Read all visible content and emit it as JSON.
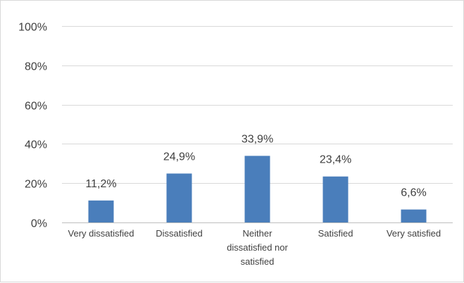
{
  "chart_data": {
    "type": "bar",
    "title": "",
    "xlabel": "",
    "ylabel": "",
    "categories": [
      [
        "Very dissatisfied"
      ],
      [
        "Dissatisfied"
      ],
      [
        "Neither",
        "dissatisfied nor",
        "satisfied"
      ],
      [
        "Satisfied"
      ],
      [
        "Very satisfied"
      ]
    ],
    "values": [
      11.2,
      24.9,
      33.9,
      23.4,
      6.6
    ],
    "value_labels": [
      "11,2%",
      "24,9%",
      "33,9%",
      "23,4%",
      "6,6%"
    ],
    "ylim": [
      0,
      100
    ],
    "yticks": [
      0,
      20,
      40,
      60,
      80,
      100
    ],
    "ytick_labels": [
      "0%",
      "20%",
      "40%",
      "60%",
      "80%",
      "100%"
    ],
    "grid": true,
    "legend": "none",
    "colors": {
      "bar": "#4a7ebb"
    }
  }
}
